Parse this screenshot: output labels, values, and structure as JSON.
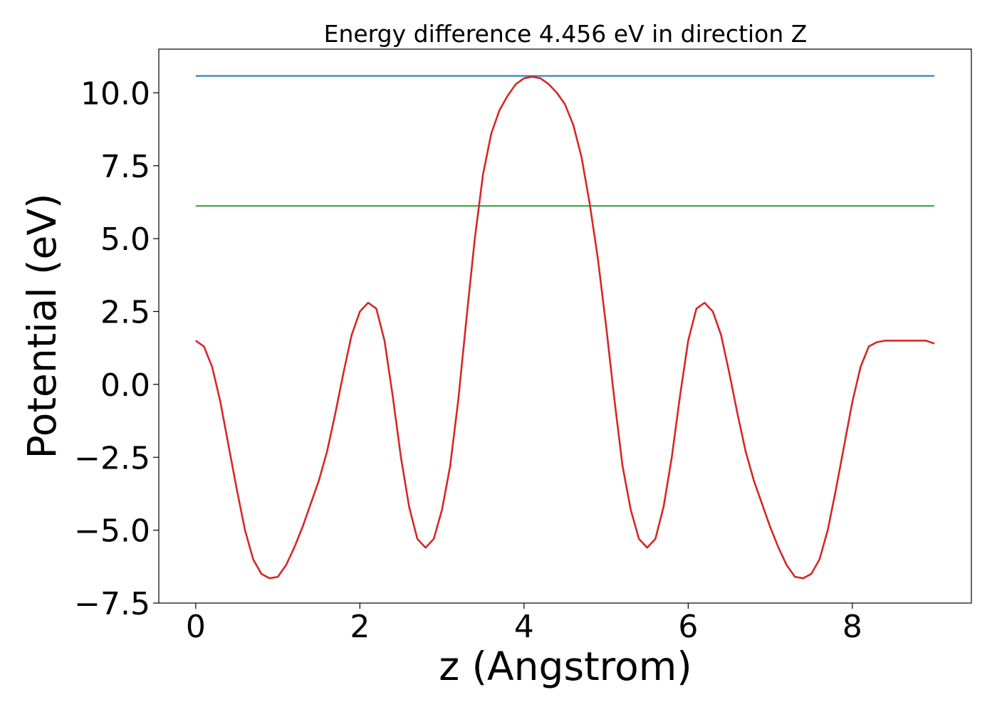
{
  "chart_data": {
    "type": "line",
    "title": "Energy difference 4.456 eV in direction Z",
    "xlabel": "z (Angstrom)",
    "ylabel": "Potential (eV)",
    "xlim": [
      -0.45,
      9.45
    ],
    "ylim": [
      -7.5,
      11.5
    ],
    "xticks": [
      0,
      2,
      4,
      6,
      8
    ],
    "yticks": [
      -7.5,
      -5.0,
      -2.5,
      0.0,
      2.5,
      5.0,
      7.5,
      10.0
    ],
    "ytick_labels": [
      "−7.5",
      "−5.0",
      "−2.5",
      "0.0",
      "2.5",
      "5.0",
      "7.5",
      "10.0"
    ],
    "grid": false,
    "series": [
      {
        "color": "#1f77b4",
        "x": [
          0,
          9.0
        ],
        "y": [
          10.58,
          10.58
        ]
      },
      {
        "color": "#2ca02c",
        "x": [
          0,
          9.0
        ],
        "y": [
          6.12,
          6.12
        ]
      },
      {
        "color": "#d62728",
        "x": [
          0.0,
          0.1,
          0.2,
          0.3,
          0.4,
          0.5,
          0.6,
          0.7,
          0.8,
          0.9,
          1.0,
          1.1,
          1.2,
          1.3,
          1.4,
          1.5,
          1.6,
          1.7,
          1.8,
          1.9,
          2.0,
          2.1,
          2.2,
          2.3,
          2.4,
          2.5,
          2.6,
          2.7,
          2.8,
          2.9,
          3.0,
          3.1,
          3.2,
          3.3,
          3.4,
          3.5,
          3.6,
          3.7,
          3.8,
          3.9,
          4.0,
          4.1,
          4.2,
          4.3,
          4.4,
          4.5,
          4.6,
          4.7,
          4.8,
          4.9,
          5.0,
          5.1,
          5.2,
          5.3,
          5.4,
          5.5,
          5.6,
          5.7,
          5.8,
          5.9,
          6.0,
          6.1,
          6.2,
          6.3,
          6.4,
          6.5,
          6.6,
          6.7,
          6.8,
          6.9,
          7.0,
          7.1,
          7.2,
          7.3,
          7.4,
          7.5,
          7.6,
          7.7,
          7.8,
          7.9,
          8.0,
          8.1,
          8.2,
          8.3,
          8.4,
          8.5,
          8.6,
          8.7,
          8.8,
          8.9,
          9.0
        ],
        "y": [
          1.5,
          1.3,
          0.6,
          -0.6,
          -2.1,
          -3.6,
          -5.0,
          -6.0,
          -6.5,
          -6.65,
          -6.6,
          -6.2,
          -5.6,
          -4.9,
          -4.1,
          -3.3,
          -2.3,
          -1.0,
          0.4,
          1.7,
          2.5,
          2.8,
          2.6,
          1.5,
          -0.4,
          -2.5,
          -4.2,
          -5.3,
          -5.6,
          -5.3,
          -4.3,
          -2.8,
          -0.5,
          2.3,
          5.0,
          7.2,
          8.6,
          9.4,
          9.9,
          10.3,
          10.5,
          10.55,
          10.5,
          10.3,
          10.0,
          9.6,
          8.9,
          7.8,
          6.2,
          4.3,
          2.0,
          -0.5,
          -2.8,
          -4.3,
          -5.3,
          -5.6,
          -5.3,
          -4.2,
          -2.5,
          -0.4,
          1.5,
          2.6,
          2.8,
          2.5,
          1.7,
          0.4,
          -1.0,
          -2.3,
          -3.3,
          -4.1,
          -4.9,
          -5.6,
          -6.2,
          -6.6,
          -6.65,
          -6.5,
          -6.0,
          -5.0,
          -3.6,
          -2.1,
          -0.6,
          0.6,
          1.3,
          1.45,
          1.5,
          1.5,
          1.5,
          1.5,
          1.5,
          1.5,
          1.4
        ]
      }
    ]
  }
}
